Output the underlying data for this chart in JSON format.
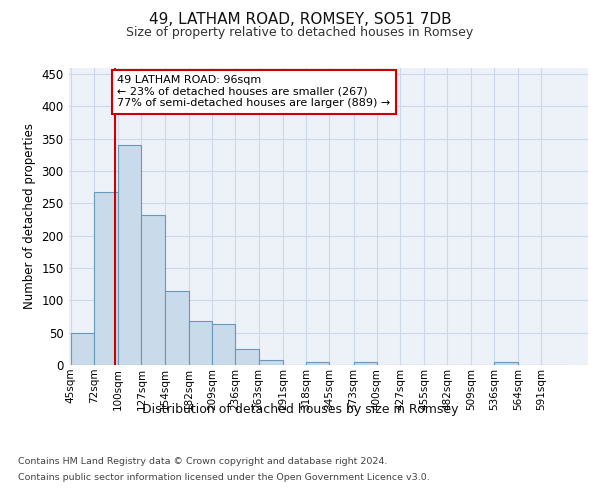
{
  "title1": "49, LATHAM ROAD, ROMSEY, SO51 7DB",
  "title2": "Size of property relative to detached houses in Romsey",
  "xlabel": "Distribution of detached houses by size in Romsey",
  "ylabel": "Number of detached properties",
  "bin_labels": [
    "45sqm",
    "72sqm",
    "100sqm",
    "127sqm",
    "154sqm",
    "182sqm",
    "209sqm",
    "236sqm",
    "263sqm",
    "291sqm",
    "318sqm",
    "345sqm",
    "373sqm",
    "400sqm",
    "427sqm",
    "455sqm",
    "482sqm",
    "509sqm",
    "536sqm",
    "564sqm",
    "591sqm"
  ],
  "bin_edges": [
    45,
    72,
    100,
    127,
    154,
    182,
    209,
    236,
    263,
    291,
    318,
    345,
    373,
    400,
    427,
    455,
    482,
    509,
    536,
    564,
    591,
    618
  ],
  "bar_heights": [
    50,
    267,
    340,
    232,
    114,
    68,
    63,
    25,
    7,
    0,
    5,
    0,
    4,
    0,
    0,
    0,
    0,
    0,
    4,
    0,
    0
  ],
  "bar_color": "#c9daea",
  "bar_edge_color": "#6699bb",
  "property_size": 96,
  "annotation_title": "49 LATHAM ROAD: 96sqm",
  "annotation_line1": "← 23% of detached houses are smaller (267)",
  "annotation_line2": "77% of semi-detached houses are larger (889) →",
  "annotation_box_color": "#ffffff",
  "annotation_box_edge": "#cc0000",
  "marker_line_color": "#cc0000",
  "ylim": [
    0,
    460
  ],
  "yticks": [
    0,
    50,
    100,
    150,
    200,
    250,
    300,
    350,
    400,
    450
  ],
  "grid_color": "#cdd8ea",
  "bg_color": "#edf1f8",
  "footnote1": "Contains HM Land Registry data © Crown copyright and database right 2024.",
  "footnote2": "Contains public sector information licensed under the Open Government Licence v3.0."
}
